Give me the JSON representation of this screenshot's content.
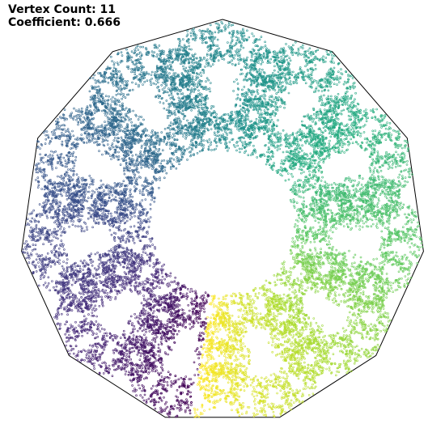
{
  "labels": {
    "vertex_count_text": "Vertex Count: 11",
    "coefficient_text": "Coefficient: 0.666"
  },
  "fractal": {
    "vertices": 11,
    "coefficient": 0.666,
    "outline_color": "#000000",
    "background": "#ffffff",
    "colormap": "viridis"
  }
}
